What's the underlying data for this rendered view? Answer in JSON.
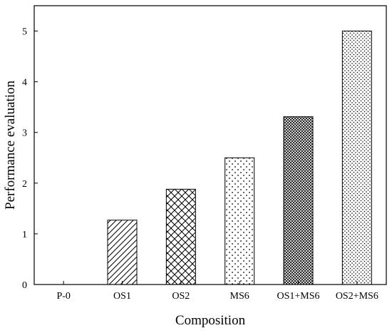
{
  "chart_data": {
    "type": "bar",
    "title": "",
    "xlabel": "Composition",
    "ylabel": "Performance evaluation",
    "categories": [
      "P-0",
      "OS1",
      "OS2",
      "MS6",
      "OS1+MS6",
      "OS2+MS6"
    ],
    "values": [
      0,
      1.27,
      1.88,
      2.5,
      3.31,
      5.0
    ],
    "patterns": [
      "none",
      "diagonal-lines",
      "crosshatch-diagonal",
      "sparse-dots",
      "dense-crosshatch",
      "dense-dots"
    ],
    "ylim": [
      0,
      5.5
    ],
    "yticks": [
      "0",
      "1",
      "2",
      "3",
      "4",
      "5"
    ],
    "grid": false,
    "legend": "none"
  }
}
